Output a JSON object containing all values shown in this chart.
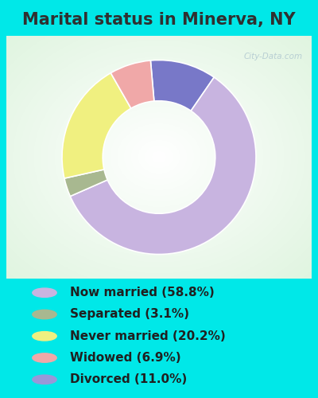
{
  "title": "Marital status in Minerva, NY",
  "slices": [
    58.8,
    3.1,
    20.2,
    6.9,
    11.0
  ],
  "labels": [
    "Now married (58.8%)",
    "Separated (3.1%)",
    "Never married (20.2%)",
    "Widowed (6.9%)",
    "Divorced (11.0%)"
  ],
  "colors_legend": [
    "#c8b4e0",
    "#a8b890",
    "#f0f080",
    "#f0a8a8",
    "#9898d8"
  ],
  "colors_pie": [
    "#c8b4e0",
    "#a8b890",
    "#f0f080",
    "#f0a8a8",
    "#7878c8"
  ],
  "bg_outer": "#00e8e8",
  "bg_chart_tl": "#c8e8d0",
  "bg_chart_tr": "#e8f0f0",
  "bg_chart_br": "#f0f8f0",
  "title_color": "#303030",
  "title_fontsize": 15,
  "legend_fontsize": 11,
  "watermark": "City-Data.com",
  "watermark_color": "#b0c8d0",
  "donut_width": 0.42,
  "startangle": 95,
  "pie_order_indices": [
    4,
    0,
    1,
    2,
    3
  ]
}
